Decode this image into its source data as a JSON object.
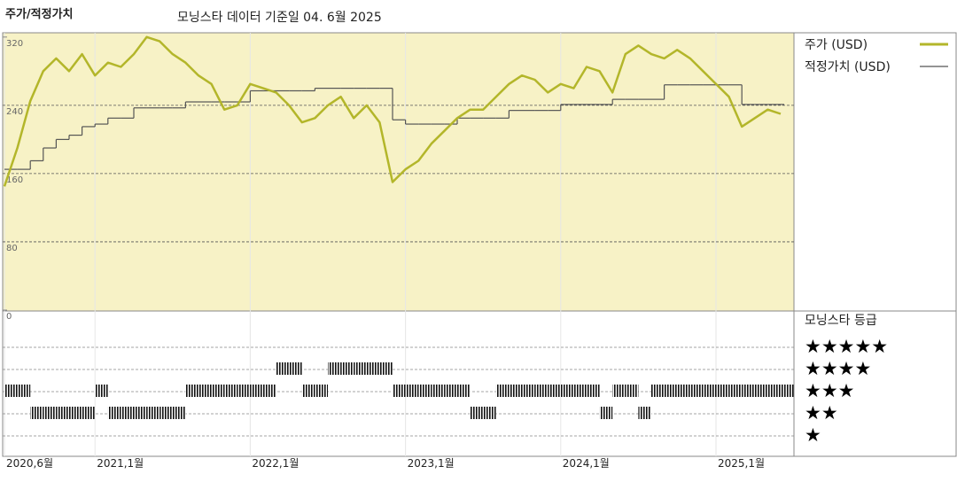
{
  "chart_data": {
    "type": "line",
    "title": "주가/적정가치",
    "subtitle": "모닝스타 데이터 기준일 04. 6월 2025",
    "x": [
      "2020-06",
      "2020-07",
      "2020-08",
      "2020-09",
      "2020-10",
      "2020-11",
      "2020-12",
      "2021-01",
      "2021-02",
      "2021-03",
      "2021-04",
      "2021-05",
      "2021-06",
      "2021-07",
      "2021-08",
      "2021-09",
      "2021-10",
      "2021-11",
      "2021-12",
      "2022-01",
      "2022-02",
      "2022-03",
      "2022-04",
      "2022-05",
      "2022-06",
      "2022-07",
      "2022-08",
      "2022-09",
      "2022-10",
      "2022-11",
      "2022-12",
      "2023-01",
      "2023-02",
      "2023-03",
      "2023-04",
      "2023-05",
      "2023-06",
      "2023-07",
      "2023-08",
      "2023-09",
      "2023-10",
      "2023-11",
      "2023-12",
      "2024-01",
      "2024-02",
      "2024-03",
      "2024-04",
      "2024-05",
      "2024-06",
      "2024-07",
      "2024-08",
      "2024-09",
      "2024-10",
      "2024-11",
      "2024-12",
      "2025-01",
      "2025-02",
      "2025-03",
      "2025-04",
      "2025-05",
      "2025-06"
    ],
    "series": [
      {
        "name": "주가 (USD)",
        "color": "#b3b62a",
        "values": [
          145,
          190,
          245,
          280,
          295,
          280,
          300,
          275,
          290,
          285,
          300,
          320,
          315,
          300,
          290,
          275,
          265,
          235,
          240,
          265,
          260,
          255,
          240,
          220,
          225,
          240,
          250,
          225,
          240,
          220,
          150,
          165,
          175,
          195,
          210,
          225,
          235,
          235,
          250,
          265,
          275,
          270,
          255,
          265,
          260,
          285,
          280,
          255,
          300,
          310,
          300,
          295,
          305,
          295,
          280,
          265,
          250,
          215,
          225,
          235,
          230
        ]
      },
      {
        "name": "적정가치 (USD)",
        "color": "#555555",
        "values": [
          165,
          165,
          175,
          190,
          200,
          205,
          215,
          218,
          225,
          225,
          237,
          237,
          237,
          237,
          244,
          244,
          244,
          244,
          244,
          257,
          257,
          257,
          257,
          257,
          260,
          260,
          260,
          260,
          260,
          260,
          223,
          218,
          218,
          218,
          218,
          225,
          225,
          225,
          225,
          234,
          234,
          234,
          234,
          241,
          241,
          241,
          241,
          247,
          247,
          247,
          247,
          264,
          264,
          264,
          264,
          264,
          264,
          241,
          241,
          241,
          241
        ]
      }
    ],
    "ylim": [
      0,
      325
    ],
    "yticks": [
      0,
      80,
      160,
      240,
      320
    ],
    "xticks": [
      {
        "value": "2020-06",
        "label": "2020,6월"
      },
      {
        "value": "2021-01",
        "label": "2021,1월"
      },
      {
        "value": "2022-01",
        "label": "2022,1월"
      },
      {
        "value": "2023-01",
        "label": "2023,1월"
      },
      {
        "value": "2024-01",
        "label": "2024,1월"
      },
      {
        "value": "2025-01",
        "label": "2025,1월"
      }
    ],
    "rating_title": "모닝스타 등급",
    "rating_labels": [
      "★★★★★",
      "★★★★",
      "★★★",
      "★★",
      "★"
    ],
    "ratings": [
      3,
      3,
      2,
      2,
      2,
      2,
      2,
      3,
      2,
      2,
      2,
      2,
      2,
      2,
      3,
      3,
      3,
      3,
      3,
      3,
      3,
      4,
      4,
      3,
      3,
      4,
      4,
      4,
      4,
      4,
      3,
      3,
      3,
      3,
      3,
      3,
      2,
      2,
      3,
      3,
      3,
      3,
      3,
      3,
      3,
      3,
      2,
      3,
      3,
      2,
      3,
      3,
      3,
      3,
      3,
      3,
      3,
      3,
      3,
      3,
      3
    ]
  }
}
